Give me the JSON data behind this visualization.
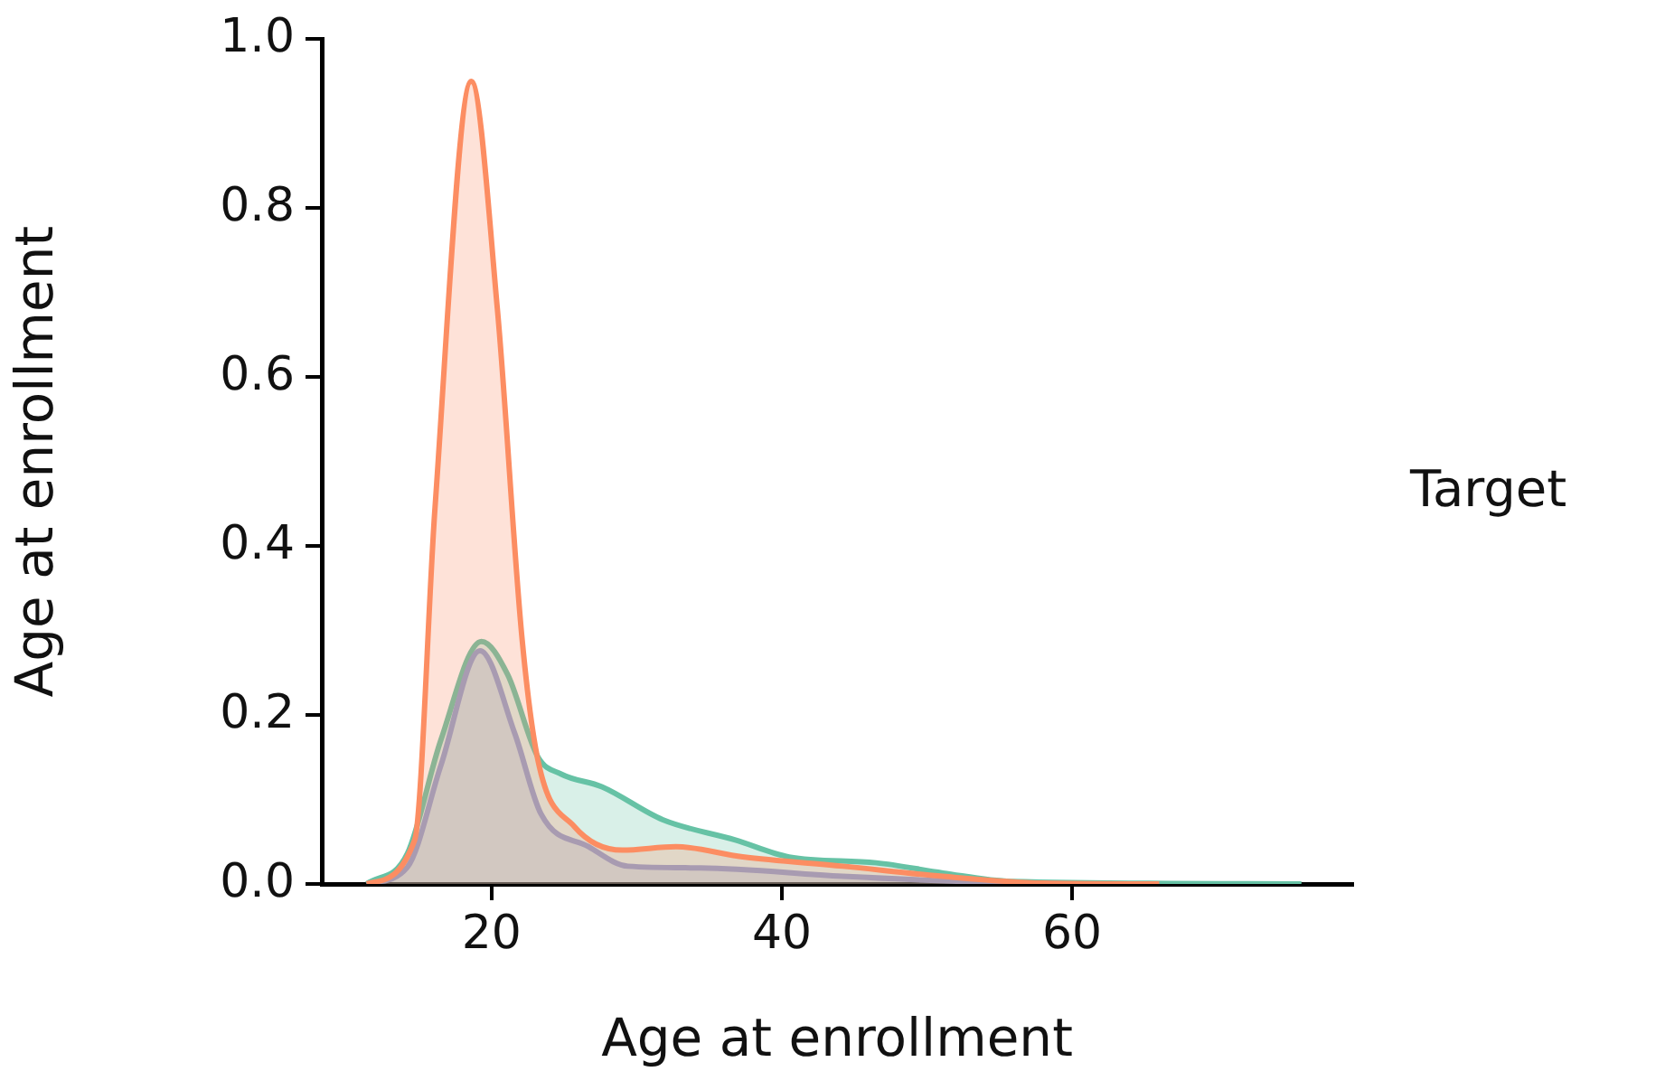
{
  "chart_data": {
    "type": "area",
    "xlabel": "Age at enrollment",
    "ylabel": "Age at enrollment",
    "legend_title": "Target",
    "xlim": [
      8.3,
      79.3
    ],
    "ylim": [
      0,
      1.0
    ],
    "xticks": [
      20,
      40,
      60
    ],
    "yticks": [
      {
        "value": 0,
        "label": "0.0"
      },
      {
        "value": 0.2,
        "label": "0.2"
      },
      {
        "value": 0.4,
        "label": "0.4"
      },
      {
        "value": 0.6,
        "label": "0.6"
      },
      {
        "value": 0.8,
        "label": "0.8"
      },
      {
        "value": 1.0,
        "label": "1.0"
      }
    ],
    "grid": false,
    "series": [
      {
        "color": "#fc8d62",
        "x": [
          11.4,
          14.7,
          16.1,
          18.6,
          20.4,
          22.1,
          23.2,
          25.7,
          29,
          32.7,
          37.3,
          44.2,
          51.1,
          58,
          66
        ],
        "values": [
          0,
          0.052,
          0.445,
          0.95,
          0.68,
          0.29,
          0.146,
          0.068,
          0.04,
          0.044,
          0.032,
          0.021,
          0.009,
          0.001,
          0
        ]
      },
      {
        "color": "#8da0cb",
        "x": [
          11.4,
          14.2,
          16.5,
          19.2,
          21.6,
          23.4,
          26.7,
          29.4,
          34.4,
          44.2,
          52.4,
          60
        ],
        "values": [
          0,
          0.02,
          0.14,
          0.276,
          0.178,
          0.083,
          0.044,
          0.021,
          0.019,
          0.009,
          0.003,
          0
        ]
      },
      {
        "color": "#66c2a5",
        "x": [
          11.4,
          14.2,
          16.5,
          19.3,
          21.1,
          23.2,
          24.8,
          27.6,
          31.8,
          36.8,
          40.5,
          46.5,
          51.1,
          55.8,
          75.8
        ],
        "values": [
          0,
          0.036,
          0.17,
          0.287,
          0.248,
          0.15,
          0.13,
          0.115,
          0.076,
          0.052,
          0.032,
          0.025,
          0.013,
          0.003,
          0
        ]
      }
    ]
  }
}
